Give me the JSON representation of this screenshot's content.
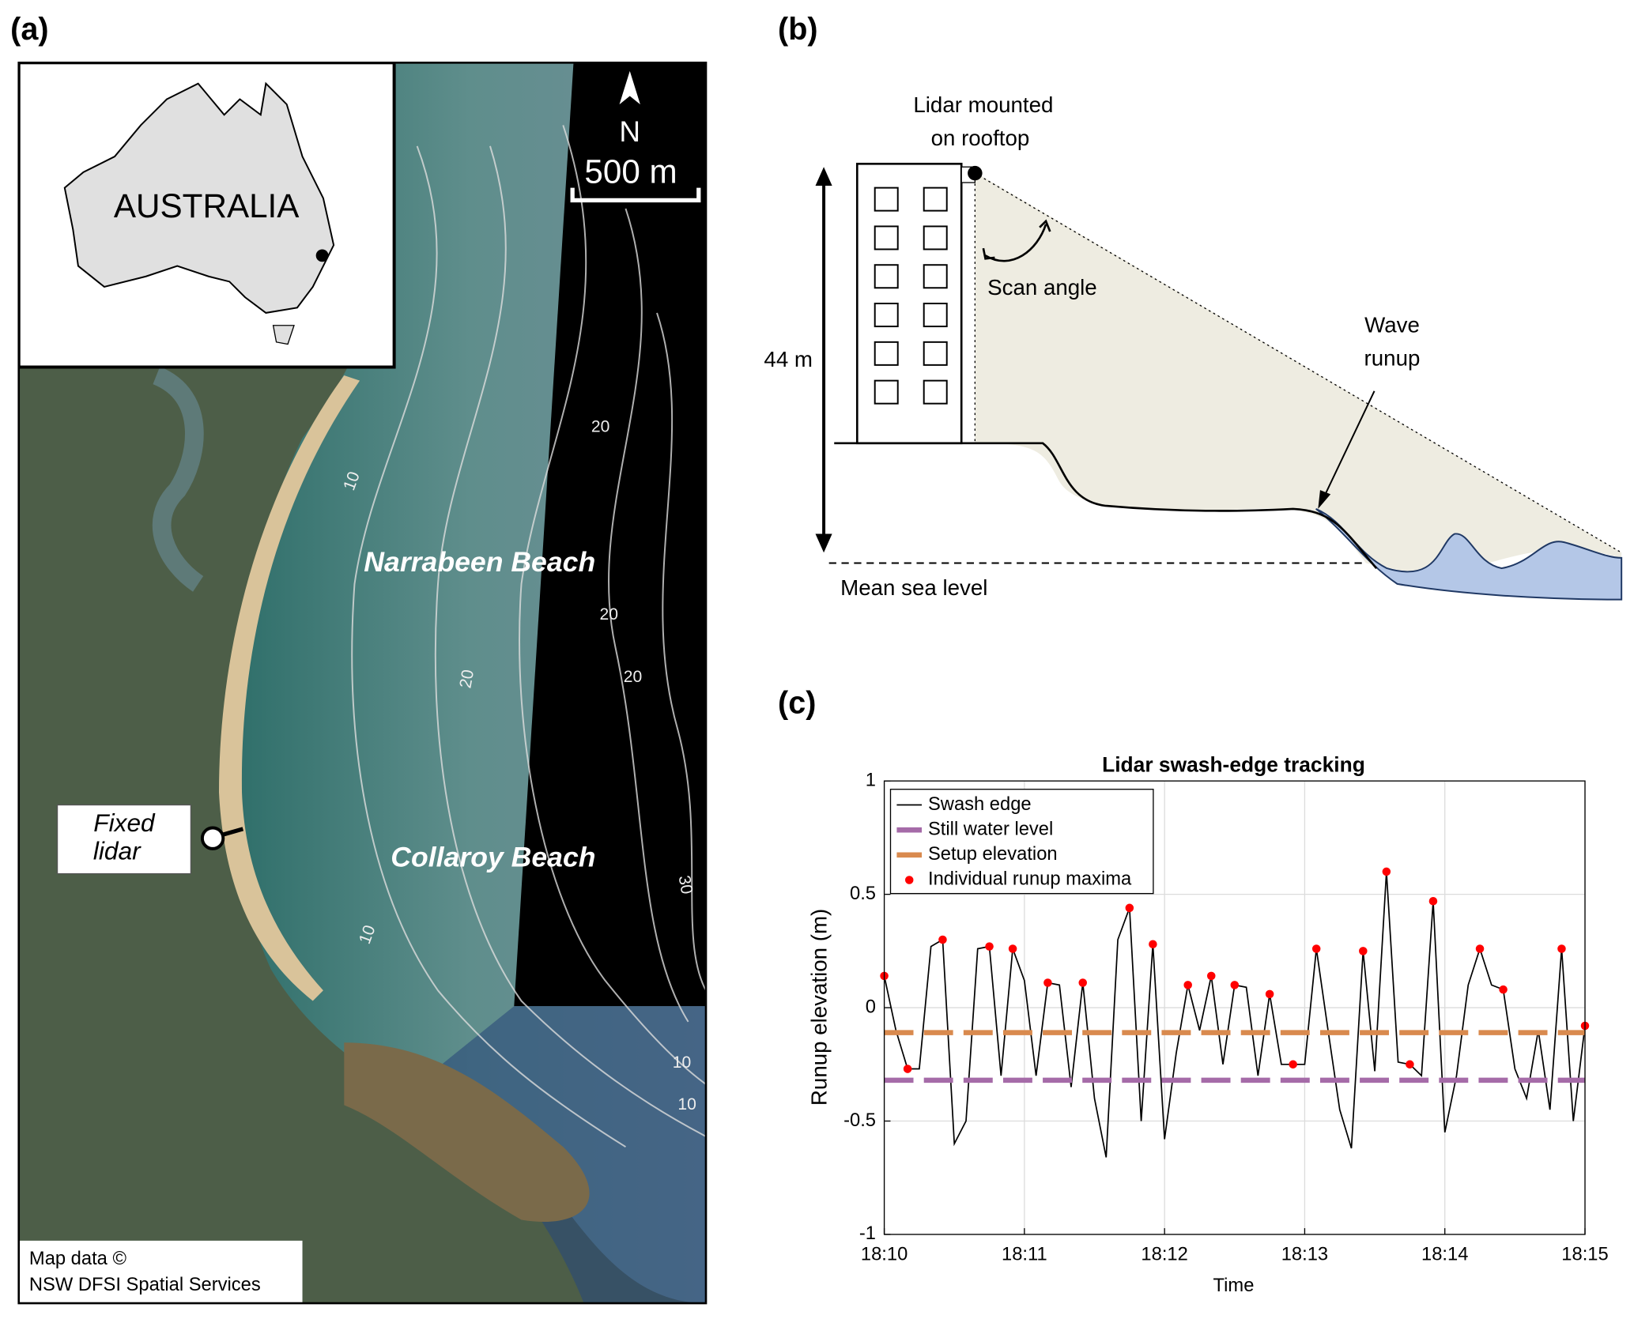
{
  "panel_labels": [
    "(a)",
    "(b)",
    "(c)"
  ],
  "map": {
    "inset_label": "AUSTRALIA",
    "north": "N",
    "scale": "500 m",
    "beaches": [
      "Narrabeen Beach",
      "Collaroy Beach"
    ],
    "lidar_label": [
      "Fixed",
      "lidar"
    ],
    "credit": [
      "Map data ©",
      "NSW DFSI Spatial Services"
    ],
    "contour_labels": [
      "10",
      "20",
      "20",
      "20",
      "10",
      "30",
      "20",
      "10",
      "10"
    ]
  },
  "diagram": {
    "lidar_label": [
      "Lidar mounted",
      "on rooftop"
    ],
    "scan_angle": "Scan angle",
    "runup_label": [
      "Wave",
      "runup"
    ],
    "height": "44 m",
    "sea_level": "Mean sea level"
  },
  "chart_data": {
    "type": "line",
    "title": "Lidar swash-edge tracking",
    "x_label": "Time",
    "y_label": "Runup elevation (m)",
    "xlim": [
      "18:10",
      "18:15"
    ],
    "xticks": [
      "18:10",
      "18:11",
      "18:12",
      "18:13",
      "18:14",
      "18:15"
    ],
    "ylim": [
      -1,
      1
    ],
    "yticks": [
      -1,
      -0.5,
      0,
      0.5,
      1
    ],
    "grid": true,
    "legend": "upper left",
    "series": [
      {
        "name": "Swash edge",
        "color": "#000000",
        "style": "solid",
        "x": [
          "18:10:00",
          "18:10:05",
          "18:10:10",
          "18:10:15",
          "18:10:20",
          "18:10:25",
          "18:10:30",
          "18:10:35",
          "18:10:40",
          "18:10:45",
          "18:10:50",
          "18:10:55",
          "18:11:00",
          "18:11:05",
          "18:11:10",
          "18:11:15",
          "18:11:20",
          "18:11:25",
          "18:11:30",
          "18:11:35",
          "18:11:40",
          "18:11:45",
          "18:11:50",
          "18:11:55",
          "18:12:00",
          "18:12:05",
          "18:12:10",
          "18:12:15",
          "18:12:20",
          "18:12:25",
          "18:12:30",
          "18:12:35",
          "18:12:40",
          "18:12:45",
          "18:12:50",
          "18:12:55",
          "18:13:00",
          "18:13:05",
          "18:13:10",
          "18:13:15",
          "18:13:20",
          "18:13:25",
          "18:13:30",
          "18:13:35",
          "18:13:40",
          "18:13:45",
          "18:13:50",
          "18:13:55",
          "18:14:00",
          "18:14:05",
          "18:14:10",
          "18:14:15",
          "18:14:20",
          "18:14:25",
          "18:14:30",
          "18:14:35",
          "18:14:40",
          "18:14:45",
          "18:14:50",
          "18:14:55",
          "18:15:00"
        ],
        "values": [
          0.14,
          -0.1,
          -0.27,
          -0.27,
          0.27,
          0.3,
          -0.6,
          -0.5,
          0.26,
          0.27,
          -0.3,
          0.26,
          0.12,
          -0.3,
          0.11,
          0.1,
          -0.35,
          0.11,
          -0.4,
          -0.66,
          0.3,
          0.44,
          -0.5,
          0.28,
          -0.58,
          -0.2,
          0.1,
          -0.1,
          0.14,
          -0.25,
          0.1,
          0.09,
          -0.3,
          0.06,
          -0.25,
          -0.25,
          -0.25,
          0.26,
          -0.1,
          -0.45,
          -0.62,
          0.25,
          -0.28,
          0.6,
          -0.24,
          -0.25,
          -0.3,
          0.47,
          -0.55,
          -0.3,
          0.1,
          0.26,
          0.1,
          0.08,
          -0.27,
          -0.4,
          -0.1,
          -0.45,
          0.26,
          -0.5,
          -0.08
        ]
      },
      {
        "name": "Still water level",
        "color": "#a56ba8",
        "style": "dashed",
        "x": [
          "18:10:00",
          "18:15:00"
        ],
        "values": [
          -0.32,
          -0.32
        ]
      },
      {
        "name": "Setup elevation",
        "color": "#d98a4e",
        "style": "dashed",
        "x": [
          "18:10:00",
          "18:15:00"
        ],
        "values": [
          -0.11,
          -0.11
        ]
      },
      {
        "name": "Individual runup maxima",
        "color": "#ff0000",
        "style": "markers",
        "x": [
          "18:10:00",
          "18:10:10",
          "18:10:25",
          "18:10:45",
          "18:10:55",
          "18:11:10",
          "18:11:25",
          "18:11:45",
          "18:11:55",
          "18:12:10",
          "18:12:20",
          "18:12:30",
          "18:12:45",
          "18:12:55",
          "18:13:05",
          "18:13:25",
          "18:13:35",
          "18:13:45",
          "18:13:55",
          "18:14:15",
          "18:14:25",
          "18:14:50",
          "18:15:00"
        ],
        "values": [
          0.14,
          -0.27,
          0.3,
          0.27,
          0.26,
          0.11,
          0.11,
          0.44,
          0.28,
          0.1,
          0.14,
          0.1,
          0.06,
          -0.25,
          0.26,
          0.25,
          0.6,
          -0.25,
          0.47,
          0.26,
          0.08,
          0.26,
          -0.08
        ]
      }
    ]
  }
}
